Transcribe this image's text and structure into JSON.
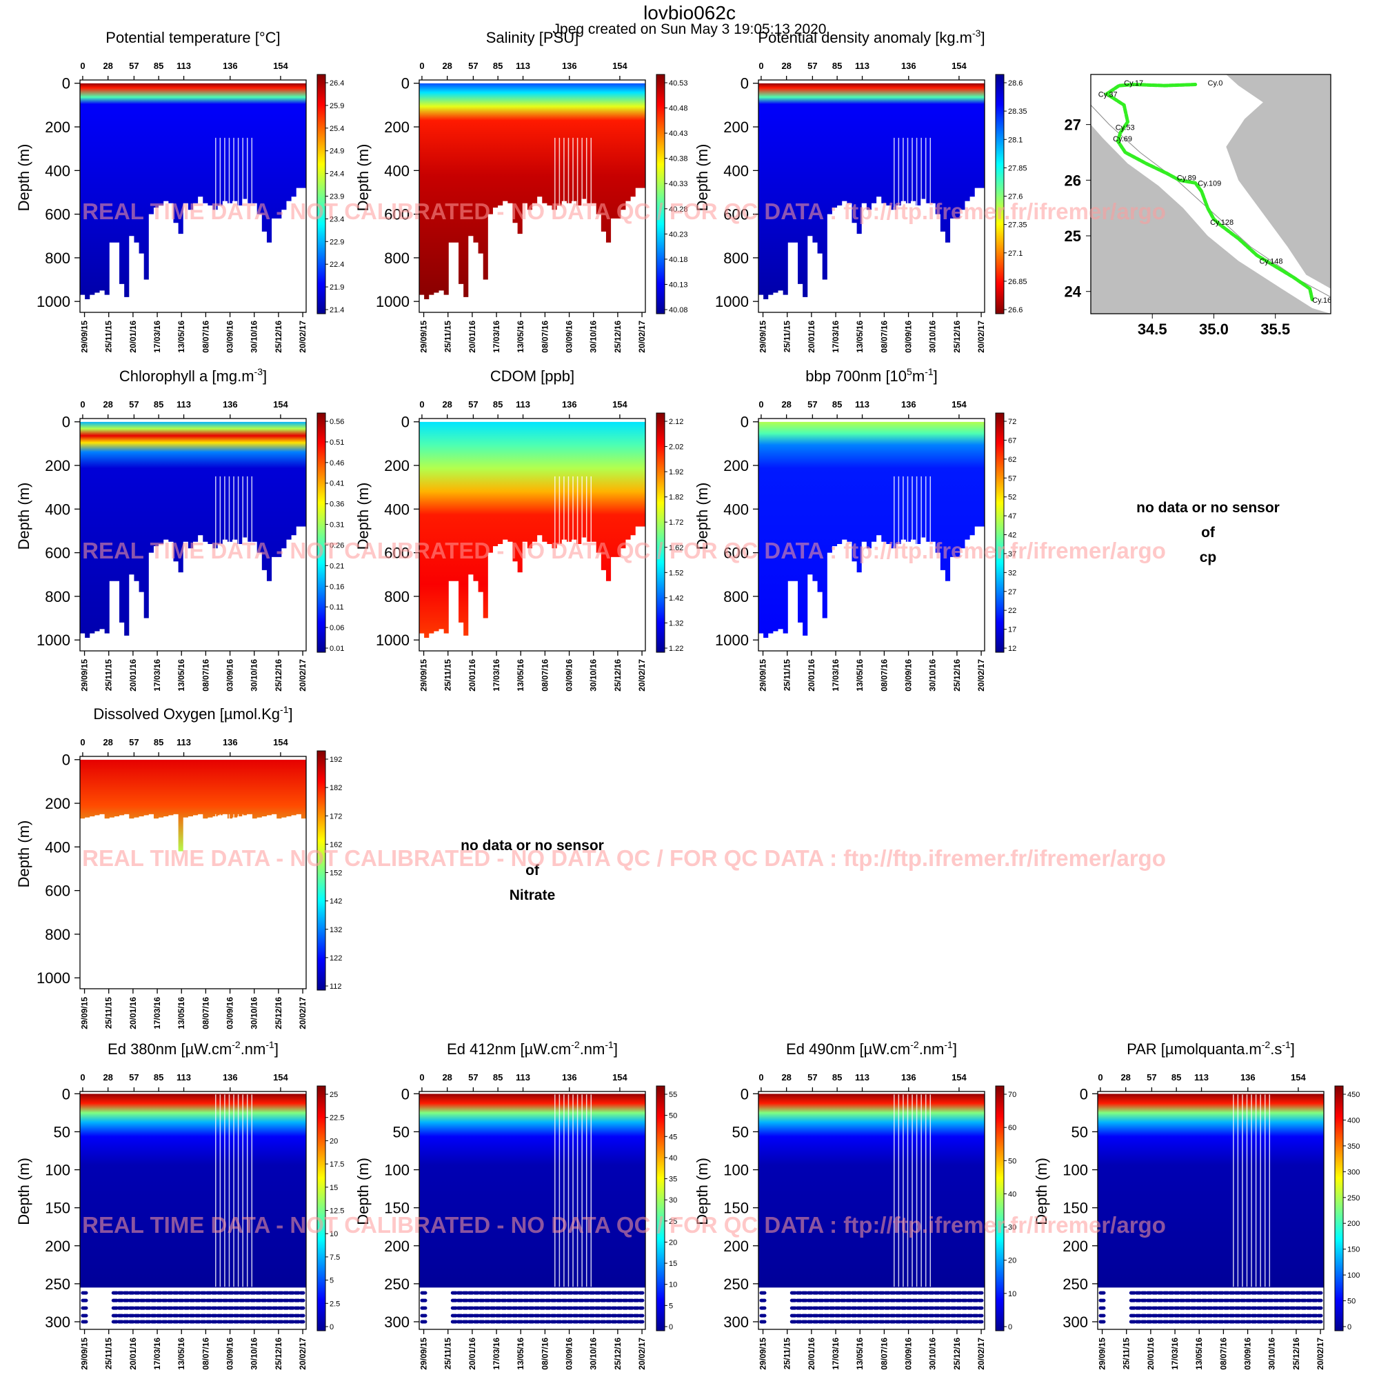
{
  "figure": {
    "title": "lovbio062c",
    "subtitle": "Jpeg created on  Sun May  3 19:05:13 2020",
    "watermark": "REAL TIME DATA - NOT CALIBRATED - NO DATA QC   /  FOR QC DATA : ftp://ftp.ifremer.fr/ifremer/argo"
  },
  "chart_data": [
    {
      "id": "temp",
      "type": "heatmap",
      "title_main": "Potential temperature [",
      "title_unit": "°C]",
      "ylabel": "Depth (m)",
      "y_ticks": [
        0,
        200,
        400,
        600,
        800,
        1000
      ],
      "ylim": [
        1050,
        -15
      ],
      "cycle_ticks": [
        "0",
        "28",
        "57",
        "85",
        "113",
        "136",
        "154"
      ],
      "date_ticks": [
        "29/09/15",
        "25/11/15",
        "20/01/16",
        "17/03/16",
        "13/05/16",
        "08/07/16",
        "03/09/16",
        "30/10/16",
        "25/12/16",
        "20/02/17"
      ],
      "colorbar_ticks": [
        "26.4",
        "25.9",
        "25.4",
        "24.9",
        "24.4",
        "23.9",
        "23.4",
        "22.9",
        "22.4",
        "21.9",
        "21.4"
      ],
      "colorbar_range": [
        21.4,
        26.4
      ]
    },
    {
      "id": "sal",
      "type": "heatmap",
      "title_main": "Salinity [PSU]",
      "ylabel": "Depth (m)",
      "y_ticks": [
        0,
        200,
        400,
        600,
        800,
        1000
      ],
      "ylim": [
        1050,
        -15
      ],
      "cycle_ticks": [
        "0",
        "28",
        "57",
        "85",
        "113",
        "136",
        "154"
      ],
      "date_ticks": [
        "29/09/15",
        "25/11/15",
        "20/01/16",
        "17/03/16",
        "13/05/16",
        "08/07/16",
        "03/09/16",
        "30/10/16",
        "25/12/16",
        "20/02/17"
      ],
      "colorbar_ticks": [
        "40.53",
        "40.48",
        "40.43",
        "40.38",
        "40.33",
        "40.28",
        "40.23",
        "40.18",
        "40.13",
        "40.08"
      ],
      "colorbar_range": [
        40.08,
        40.53
      ]
    },
    {
      "id": "dens",
      "type": "heatmap",
      "title_main": "Potential density anomaly [kg.m",
      "title_sup": "-3",
      "title_end": "]",
      "ylabel": "Depth (m)",
      "y_ticks": [
        0,
        200,
        400,
        600,
        800,
        1000
      ],
      "ylim": [
        1050,
        -15
      ],
      "cycle_ticks": [
        "0",
        "28",
        "57",
        "85",
        "113",
        "136",
        "154"
      ],
      "date_ticks": [
        "29/09/15",
        "25/11/15",
        "20/01/16",
        "17/03/16",
        "13/05/16",
        "08/07/16",
        "03/09/16",
        "30/10/16",
        "25/12/16",
        "20/02/17"
      ],
      "colorbar_ticks": [
        "28.6",
        "28.35",
        "28.1",
        "27.85",
        "27.6",
        "27.35",
        "27.1",
        "26.85",
        "26.6"
      ],
      "colorbar_range": [
        26.6,
        28.6
      ],
      "colorbar_reversed": true
    },
    {
      "id": "chla",
      "type": "heatmap",
      "title_main": "Chlorophyll a [mg.m",
      "title_sup": "-3",
      "title_end": "]",
      "ylabel": "Depth (m)",
      "y_ticks": [
        0,
        200,
        400,
        600,
        800,
        1000
      ],
      "ylim": [
        1050,
        -15
      ],
      "cycle_ticks": [
        "0",
        "28",
        "57",
        "85",
        "113",
        "136",
        "154"
      ],
      "date_ticks": [
        "29/09/15",
        "25/11/15",
        "20/01/16",
        "17/03/16",
        "13/05/16",
        "08/07/16",
        "03/09/16",
        "30/10/16",
        "25/12/16",
        "20/02/17"
      ],
      "colorbar_ticks": [
        "0.56",
        "0.51",
        "0.46",
        "0.41",
        "0.36",
        "0.31",
        "0.26",
        "0.21",
        "0.16",
        "0.11",
        "0.06",
        "0.01"
      ],
      "colorbar_range": [
        0.01,
        0.56
      ]
    },
    {
      "id": "cdom",
      "type": "heatmap",
      "title_main": "CDOM  [ppb]",
      "ylabel": "Depth (m)",
      "y_ticks": [
        0,
        200,
        400,
        600,
        800,
        1000
      ],
      "ylim": [
        1050,
        -15
      ],
      "cycle_ticks": [
        "0",
        "28",
        "57",
        "85",
        "113",
        "136",
        "154"
      ],
      "date_ticks": [
        "29/09/15",
        "25/11/15",
        "20/01/16",
        "17/03/16",
        "13/05/16",
        "08/07/16",
        "03/09/16",
        "30/10/16",
        "25/12/16",
        "20/02/17"
      ],
      "colorbar_ticks": [
        "2.12",
        "2.02",
        "1.92",
        "1.82",
        "1.72",
        "1.62",
        "1.52",
        "1.42",
        "1.32",
        "1.22"
      ],
      "colorbar_range": [
        1.22,
        2.12
      ]
    },
    {
      "id": "bbp",
      "type": "heatmap",
      "title_main": "bbp 700nm [10",
      "title_sup": "5",
      "title_mid": "m",
      "title_sup2": "-1",
      "title_end": "]",
      "ylabel": "Depth (m)",
      "y_ticks": [
        0,
        200,
        400,
        600,
        800,
        1000
      ],
      "ylim": [
        1050,
        -15
      ],
      "cycle_ticks": [
        "0",
        "28",
        "57",
        "85",
        "113",
        "136",
        "154"
      ],
      "date_ticks": [
        "29/09/15",
        "25/11/15",
        "20/01/16",
        "17/03/16",
        "13/05/16",
        "08/07/16",
        "03/09/16",
        "30/10/16",
        "25/12/16",
        "20/02/17"
      ],
      "colorbar_ticks": [
        "72",
        "67",
        "62",
        "57",
        "52",
        "47",
        "42",
        "37",
        "32",
        "27",
        "22",
        "17",
        "12"
      ],
      "colorbar_range": [
        12,
        72
      ]
    },
    {
      "id": "doxy",
      "type": "heatmap",
      "title_main": "Dissolved Oxygen [",
      "title_unit": "µmol.Kg",
      "title_sup": "-1",
      "title_end": "]",
      "ylabel": "Depth (m)",
      "y_ticks": [
        0,
        200,
        400,
        600,
        800,
        1000
      ],
      "ylim": [
        1050,
        -15
      ],
      "cycle_ticks": [
        "0",
        "28",
        "57",
        "85",
        "113",
        "136",
        "154"
      ],
      "date_ticks": [
        "29/09/15",
        "25/11/15",
        "20/01/16",
        "17/03/16",
        "13/05/16",
        "08/07/16",
        "03/09/16",
        "30/10/16",
        "25/12/16",
        "20/02/17"
      ],
      "colorbar_ticks": [
        "192",
        "182",
        "172",
        "162",
        "152",
        "142",
        "132",
        "122",
        "112"
      ],
      "colorbar_range": [
        112,
        192
      ]
    },
    {
      "id": "ed380",
      "type": "heatmap",
      "title_main": "Ed 380nm [",
      "title_unit": "µW.cm",
      "title_sup": "-2",
      "title_mid": ".nm",
      "title_sup2": "-1",
      "title_end": "]",
      "ylabel": "Depth (m)",
      "y_ticks": [
        0,
        50,
        100,
        150,
        200,
        250,
        300
      ],
      "ylim": [
        310,
        -3
      ],
      "cycle_ticks": [
        "0",
        "28",
        "57",
        "85",
        "113",
        "136",
        "154"
      ],
      "date_ticks": [
        "29/09/15",
        "25/11/15",
        "20/01/16",
        "17/03/16",
        "13/05/16",
        "08/07/16",
        "03/09/16",
        "30/10/16",
        "25/12/16",
        "20/02/17"
      ],
      "colorbar_ticks": [
        "25",
        "22.5",
        "20",
        "17.5",
        "15",
        "12.5",
        "10",
        "7.5",
        "5",
        "2.5",
        "0"
      ],
      "colorbar_range": [
        0,
        25
      ]
    },
    {
      "id": "ed412",
      "type": "heatmap",
      "title_main": "Ed 412nm [",
      "title_unit": "µW.cm",
      "title_sup": "-2",
      "title_mid": ".nm",
      "title_sup2": "-1",
      "title_end": "]",
      "ylabel": "Depth (m)",
      "y_ticks": [
        0,
        50,
        100,
        150,
        200,
        250,
        300
      ],
      "ylim": [
        310,
        -3
      ],
      "cycle_ticks": [
        "0",
        "28",
        "57",
        "85",
        "113",
        "136",
        "154"
      ],
      "date_ticks": [
        "29/09/15",
        "25/11/15",
        "20/01/16",
        "17/03/16",
        "13/05/16",
        "08/07/16",
        "03/09/16",
        "30/10/16",
        "25/12/16",
        "20/02/17"
      ],
      "colorbar_ticks": [
        "55",
        "50",
        "45",
        "40",
        "35",
        "30",
        "25",
        "20",
        "15",
        "10",
        "5",
        "0"
      ],
      "colorbar_range": [
        0,
        55
      ]
    },
    {
      "id": "ed490",
      "type": "heatmap",
      "title_main": "Ed 490nm [",
      "title_unit": "µW.cm",
      "title_sup": "-2",
      "title_mid": ".nm",
      "title_sup2": "-1",
      "title_end": "]",
      "ylabel": "Depth (m)",
      "y_ticks": [
        0,
        50,
        100,
        150,
        200,
        250,
        300
      ],
      "ylim": [
        310,
        -3
      ],
      "cycle_ticks": [
        "0",
        "28",
        "57",
        "85",
        "113",
        "136",
        "154"
      ],
      "date_ticks": [
        "29/09/15",
        "25/11/15",
        "20/01/16",
        "17/03/16",
        "13/05/16",
        "08/07/16",
        "03/09/16",
        "30/10/16",
        "25/12/16",
        "20/02/17"
      ],
      "colorbar_ticks": [
        "70",
        "60",
        "50",
        "40",
        "30",
        "20",
        "10",
        "0"
      ],
      "colorbar_range": [
        0,
        75
      ]
    },
    {
      "id": "par",
      "type": "heatmap",
      "title_main": "PAR [",
      "title_unit": "µmolquanta.m",
      "title_sup": "-2",
      "title_mid": ".s",
      "title_sup2": "-1",
      "title_end": "]",
      "ylabel": "Depth (m)",
      "y_ticks": [
        0,
        50,
        100,
        150,
        200,
        250,
        300
      ],
      "ylim": [
        310,
        -3
      ],
      "cycle_ticks": [
        "0",
        "28",
        "57",
        "85",
        "113",
        "136",
        "154"
      ],
      "date_ticks": [
        "29/09/15",
        "25/11/15",
        "20/01/16",
        "17/03/16",
        "13/05/16",
        "08/07/16",
        "03/09/16",
        "30/10/16",
        "25/12/16",
        "20/02/17"
      ],
      "colorbar_ticks": [
        "450",
        "400",
        "350",
        "300",
        "250",
        "200",
        "150",
        "100",
        "50",
        "0"
      ],
      "colorbar_range": [
        0,
        490
      ]
    },
    {
      "id": "map",
      "type": "scatter",
      "x_ticks": [
        "34.5",
        "35.0",
        "35.5"
      ],
      "y_ticks": [
        "27",
        "26",
        "25",
        "24"
      ],
      "xlim": [
        34.0,
        35.95
      ],
      "ylim": [
        23.6,
        27.9
      ],
      "track_color": "#33ee22",
      "land_color": "#bebebe",
      "cycle_labels": [
        {
          "text": "Cy.0",
          "lon": 34.95,
          "lat": 27.7
        },
        {
          "text": "Cy.17",
          "lon": 34.27,
          "lat": 27.7
        },
        {
          "text": "Cy.37",
          "lon": 34.06,
          "lat": 27.5
        },
        {
          "text": "Cy.53",
          "lon": 34.2,
          "lat": 26.9
        },
        {
          "text": "Cy.69",
          "lon": 34.18,
          "lat": 26.7
        },
        {
          "text": "Cy.89",
          "lon": 34.7,
          "lat": 26.0
        },
        {
          "text": "Cy.109",
          "lon": 34.87,
          "lat": 25.9
        },
        {
          "text": "Cy.128",
          "lon": 34.97,
          "lat": 25.2
        },
        {
          "text": "Cy.148",
          "lon": 35.37,
          "lat": 24.5
        },
        {
          "text": "Cy.16",
          "lon": 35.8,
          "lat": 23.8
        }
      ]
    }
  ],
  "no_data_panels": [
    {
      "line1": "no data or no sensor",
      "line2": "of",
      "line3": "cp"
    },
    {
      "line1": "no data or no sensor",
      "line2": "of",
      "line3": "Nitrate"
    }
  ]
}
